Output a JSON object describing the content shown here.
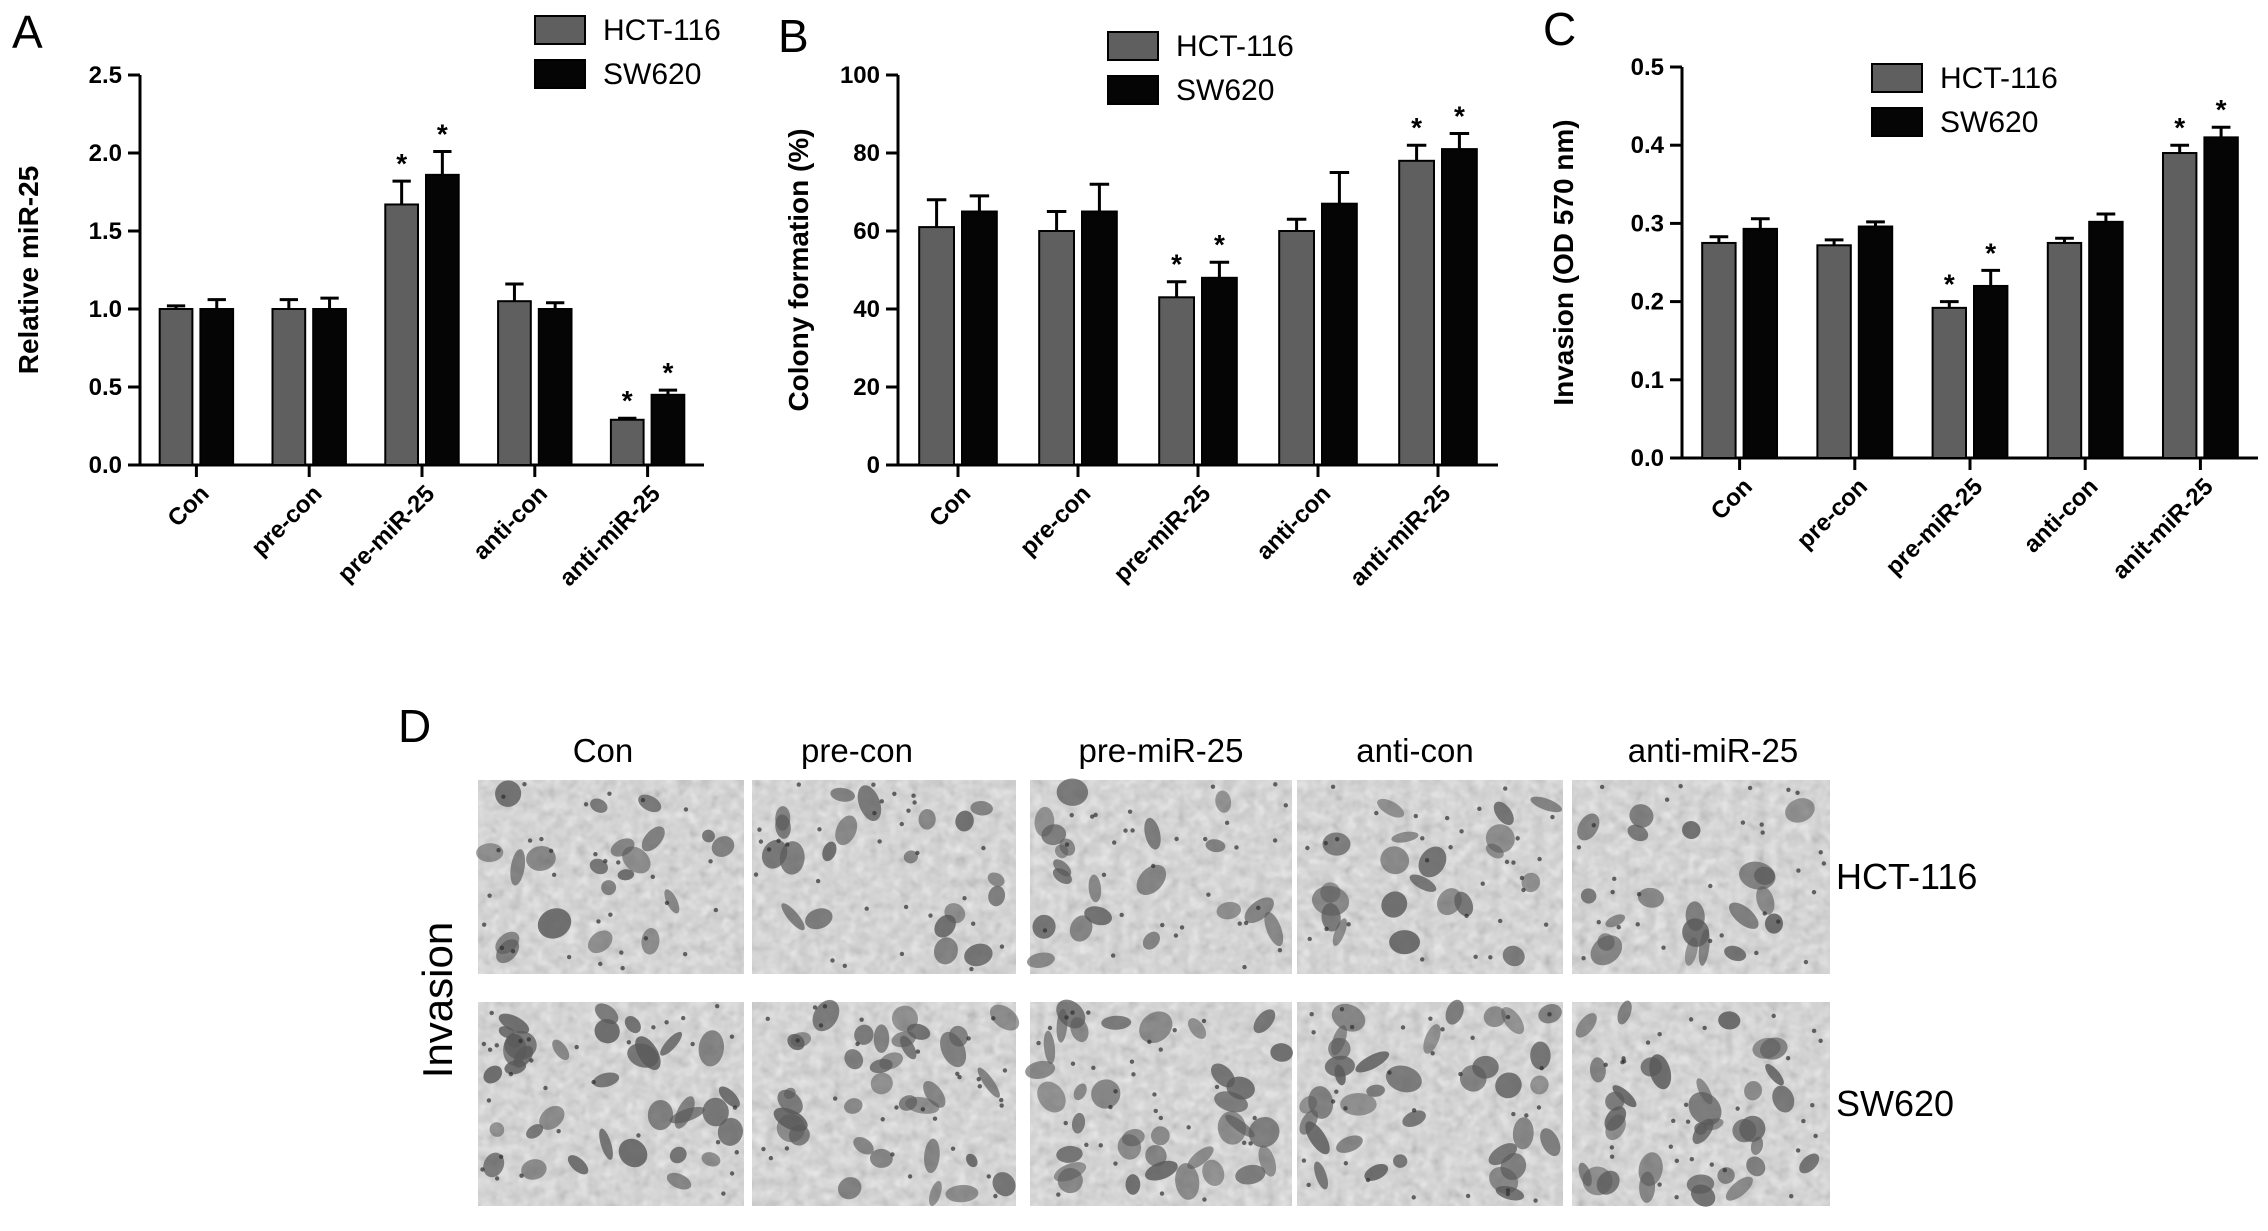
{
  "colors": {
    "hct116": "#5f5f5f",
    "sw620": "#050505"
  },
  "chart_data": [
    {
      "type": "bar",
      "panel": "A",
      "categories": [
        "Con",
        "pre-con",
        "pre-miR-25",
        "anti-con",
        "anti-miR-25"
      ],
      "ylabel": "Relative miR-25",
      "ylim": [
        0,
        2.5
      ],
      "yticks": [
        "0.0",
        "0.5",
        "1.0",
        "1.5",
        "2.0",
        "2.5"
      ],
      "grid": false,
      "legend_position": "top-right",
      "series": [
        {
          "name": "HCT-116",
          "values": [
            1.0,
            1.0,
            1.67,
            1.05,
            0.29
          ],
          "errors": [
            0.02,
            0.06,
            0.15,
            0.11,
            0.01
          ]
        },
        {
          "name": "SW620",
          "values": [
            1.0,
            1.0,
            1.86,
            1.0,
            0.45
          ],
          "errors": [
            0.06,
            0.07,
            0.15,
            0.04,
            0.03
          ]
        }
      ],
      "significance": [
        [
          false,
          false
        ],
        [
          false,
          false
        ],
        [
          true,
          true
        ],
        [
          false,
          false
        ],
        [
          true,
          true
        ]
      ]
    },
    {
      "type": "bar",
      "panel": "B",
      "categories": [
        "Con",
        "pre-con",
        "pre-miR-25",
        "anti-con",
        "anti-miR-25"
      ],
      "ylabel": "Colony  formation (%)",
      "ylim": [
        0,
        100
      ],
      "yticks": [
        "0",
        "20",
        "40",
        "60",
        "80",
        "100"
      ],
      "grid": false,
      "legend_position": "top-right",
      "series": [
        {
          "name": "HCT-116",
          "values": [
            61,
            60,
            43,
            60,
            78
          ],
          "errors": [
            7,
            5,
            4,
            3,
            4
          ]
        },
        {
          "name": "SW620",
          "values": [
            65,
            65,
            48,
            67,
            81
          ],
          "errors": [
            4,
            7,
            4,
            8,
            4
          ]
        }
      ],
      "significance": [
        [
          false,
          false
        ],
        [
          false,
          false
        ],
        [
          true,
          true
        ],
        [
          false,
          false
        ],
        [
          true,
          true
        ]
      ]
    },
    {
      "type": "bar",
      "panel": "C",
      "categories": [
        "Con",
        "pre-con",
        "pre-miR-25",
        "anti-con",
        "anit-miR-25"
      ],
      "ylabel": "Invasion (OD 570 nm)",
      "ylim": [
        0,
        0.5
      ],
      "yticks": [
        "0.0",
        "0.1",
        "0.2",
        "0.3",
        "0.4",
        "0.5"
      ],
      "grid": false,
      "legend_position": "top-right",
      "series": [
        {
          "name": "HCT-116",
          "values": [
            0.275,
            0.272,
            0.192,
            0.275,
            0.39
          ],
          "errors": [
            0.008,
            0.007,
            0.008,
            0.006,
            0.01
          ]
        },
        {
          "name": "SW620",
          "values": [
            0.293,
            0.296,
            0.22,
            0.302,
            0.41
          ],
          "errors": [
            0.013,
            0.006,
            0.02,
            0.01,
            0.013
          ]
        }
      ],
      "significance": [
        [
          false,
          false
        ],
        [
          false,
          false
        ],
        [
          true,
          true
        ],
        [
          false,
          false
        ],
        [
          true,
          true
        ]
      ]
    }
  ],
  "panel_d": {
    "letter": "D",
    "columns": [
      "Con",
      "pre-con",
      "pre-miR-25",
      "anti-con",
      "anti-miR-25"
    ],
    "rows": [
      "HCT-116",
      "SW620"
    ],
    "side_label": "Invasion"
  }
}
